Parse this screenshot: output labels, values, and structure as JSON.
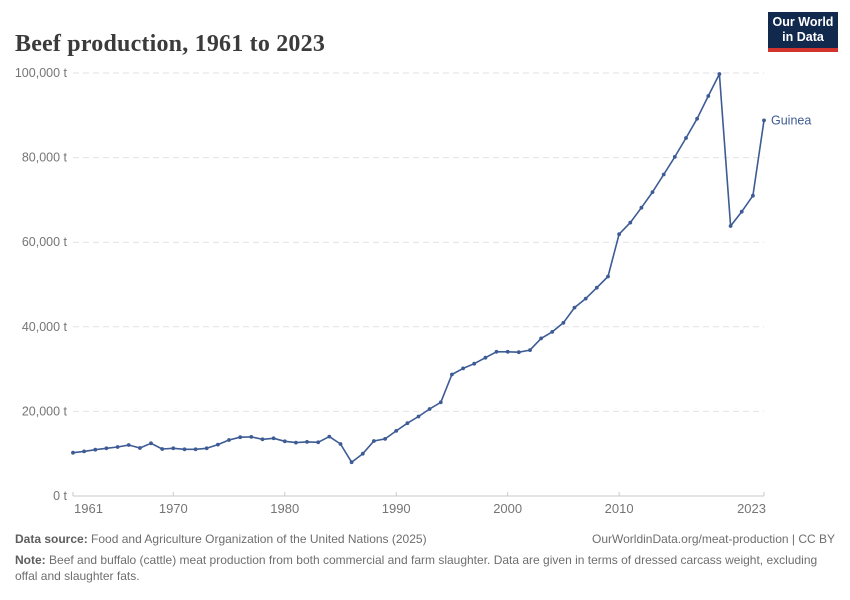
{
  "header": {
    "title": "Beef production, 1961 to 2023",
    "logo": {
      "line1": "Our World",
      "line2": "in Data",
      "bg_color": "#12294e",
      "bar_color": "#d0342c"
    }
  },
  "chart_data": {
    "type": "line",
    "title": "Beef production, 1961 to 2023",
    "entity_label": "Guinea",
    "unit": "t",
    "xlim": [
      1961,
      2023
    ],
    "ylim": [
      0,
      100000
    ],
    "grid": "horizontal-dashed",
    "legend_position": "end-of-line",
    "line_color": "#3d5b94",
    "grid_color": "#e2e2e2",
    "axis_color": "#c9c9c9",
    "tick_label_color": "#757575",
    "x": [
      1961,
      1962,
      1963,
      1964,
      1965,
      1966,
      1967,
      1968,
      1969,
      1970,
      1971,
      1972,
      1973,
      1974,
      1975,
      1976,
      1977,
      1978,
      1979,
      1980,
      1981,
      1982,
      1983,
      1984,
      1985,
      1986,
      1987,
      1988,
      1989,
      1990,
      1991,
      1992,
      1993,
      1994,
      1995,
      1996,
      1997,
      1998,
      1999,
      2000,
      2001,
      2002,
      2003,
      2004,
      2005,
      2006,
      2007,
      2008,
      2009,
      2010,
      2011,
      2012,
      2013,
      2014,
      2015,
      2016,
      2017,
      2018,
      2019,
      2020,
      2021,
      2022,
      2023
    ],
    "series": [
      {
        "name": "Guinea",
        "values": [
          10230,
          10550,
          10950,
          11270,
          11580,
          12060,
          11340,
          12460,
          11110,
          11270,
          11030,
          11030,
          11270,
          12140,
          13250,
          13890,
          13970,
          13410,
          13650,
          12930,
          12620,
          12780,
          12700,
          14050,
          12300,
          8000,
          10000,
          13000,
          13500,
          15400,
          17200,
          18800,
          20560,
          22140,
          28730,
          30160,
          31270,
          32700,
          34100,
          34100,
          34000,
          34500,
          37250,
          38800,
          40940,
          44550,
          46660,
          49250,
          51900,
          61900,
          64640,
          68160,
          71840,
          76000,
          80160,
          84640,
          89200,
          94560,
          99760,
          63840,
          67200,
          71000,
          88800
        ]
      }
    ],
    "yticks": [
      {
        "value": 100000,
        "label": "100,000 t"
      },
      {
        "value": 80000,
        "label": "80,000 t"
      },
      {
        "value": 60000,
        "label": "60,000 t"
      },
      {
        "value": 40000,
        "label": "40,000 t"
      },
      {
        "value": 20000,
        "label": "20,000 t"
      },
      {
        "value": 0,
        "label": "0 t"
      }
    ],
    "xticks": [
      {
        "value": 1961,
        "label": "1961"
      },
      {
        "value": 1970,
        "label": "1970"
      },
      {
        "value": 1980,
        "label": "1980"
      },
      {
        "value": 1990,
        "label": "1990"
      },
      {
        "value": 2000,
        "label": "2000"
      },
      {
        "value": 2010,
        "label": "2010"
      },
      {
        "value": 2023,
        "label": "2023"
      }
    ]
  },
  "footer": {
    "data_source_label": "Data source:",
    "data_source_text": "Food and Agriculture Organization of the United Nations (2025)",
    "link_text": "OurWorldinData.org/meat-production | CC BY",
    "note_label": "Note:",
    "note_text": "Beef and buffalo (cattle) meat production from both commercial and farm slaughter. Data are given in terms of dressed carcass weight, excluding offal and slaughter fats."
  }
}
